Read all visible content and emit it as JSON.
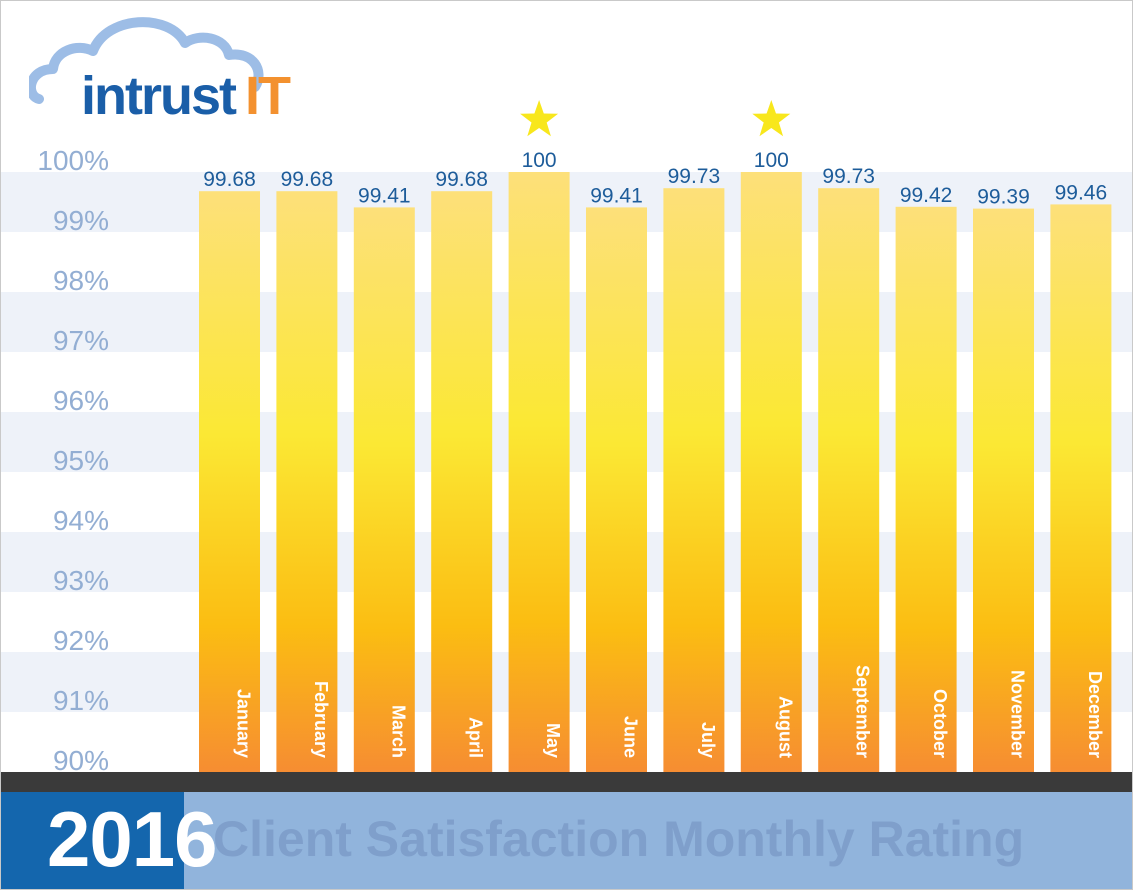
{
  "brand": {
    "name_part1": "intrust",
    "name_part2": "IT",
    "colors": {
      "blue": "#1a5ea8",
      "orange": "#f3912f",
      "cloud": "#9dbde6"
    }
  },
  "footer": {
    "year": "2016",
    "title": "Client Satisfaction Monthly Rating",
    "colors": {
      "year_box": "#1466ad",
      "bar": "#91b4dc",
      "divider": "#3a3a3a"
    }
  },
  "chart_data": {
    "type": "bar",
    "categories": [
      "January",
      "February",
      "March",
      "April",
      "May",
      "June",
      "July",
      "August",
      "September",
      "October",
      "November",
      "December"
    ],
    "values": [
      99.68,
      99.68,
      99.41,
      99.68,
      100,
      99.41,
      99.73,
      100,
      99.73,
      99.42,
      99.39,
      99.46
    ],
    "value_labels": [
      "99.68",
      "99.68",
      "99.41",
      "99.68",
      "100",
      "99.41",
      "99.73",
      "100",
      "99.73",
      "99.42",
      "99.39",
      "99.46"
    ],
    "stars": [
      "May",
      "August"
    ],
    "ylim": [
      90,
      100
    ],
    "yticks": [
      {
        "value": 100,
        "label": "100%"
      },
      {
        "value": 99,
        "label": "99%"
      },
      {
        "value": 98,
        "label": "98%"
      },
      {
        "value": 97,
        "label": "97%"
      },
      {
        "value": 96,
        "label": "96%"
      },
      {
        "value": 95,
        "label": "95%"
      },
      {
        "value": 94,
        "label": "94%"
      },
      {
        "value": 93,
        "label": "93%"
      },
      {
        "value": 92,
        "label": "92%"
      },
      {
        "value": 91,
        "label": "91%"
      },
      {
        "value": 90,
        "label": "90%"
      }
    ],
    "xlabel": "",
    "ylabel": "",
    "grid": "alternating horizontal bands",
    "colors": {
      "bar_top": "#fde07a",
      "bar_mid": "#fbe834",
      "bar_bottom": "#f68d32",
      "value_label": "#1d5c9a",
      "tick_label": "#93aed3",
      "star": "#f8e71c",
      "band": "#eef2f9"
    }
  }
}
